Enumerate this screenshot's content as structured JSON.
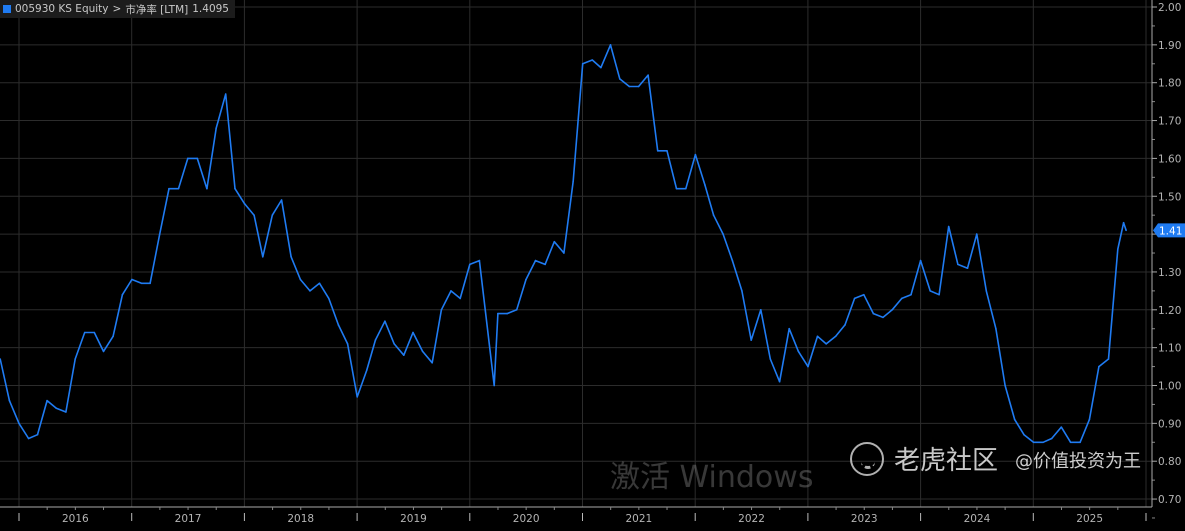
{
  "legend": {
    "ticker": "005930 KS Equity",
    "separator": ">",
    "metric": "市净率 [LTM]",
    "last_value": "1.4095",
    "color": "#1f7bf2"
  },
  "watermarks": {
    "logo_text": "老虎社区",
    "author": "@价值投资为王",
    "windows": "激活 Windows"
  },
  "chart_data": {
    "type": "line",
    "title": "",
    "xlabel": "",
    "ylabel": "",
    "ylim": [
      0.7,
      2.0
    ],
    "y_ticks": [
      "2.00",
      "1.90",
      "1.80",
      "1.70",
      "1.60",
      "1.50",
      "1.30",
      "1.20",
      "1.10",
      "1.00",
      "0.90",
      "0.80",
      "0.70"
    ],
    "x_ticks": [
      "2016",
      "2017",
      "2018",
      "2019",
      "2020",
      "2021",
      "2022",
      "2023",
      "2024",
      "2025"
    ],
    "grid": true,
    "background": "#000000",
    "last_value_badge": "1.41",
    "series": [
      {
        "name": "005930 KS Equity > 市净率 [LTM]",
        "color": "#1f7bf2",
        "dates": [
          "2015-11-01",
          "2015-12-01",
          "2016-01-01",
          "2016-02-01",
          "2016-03-01",
          "2016-04-01",
          "2016-05-01",
          "2016-06-01",
          "2016-07-01",
          "2016-08-01",
          "2016-09-01",
          "2016-10-01",
          "2016-11-01",
          "2016-12-01",
          "2017-01-01",
          "2017-02-01",
          "2017-03-01",
          "2017-04-01",
          "2017-05-01",
          "2017-06-01",
          "2017-07-01",
          "2017-08-01",
          "2017-09-01",
          "2017-10-01",
          "2017-11-01",
          "2017-12-01",
          "2018-01-01",
          "2018-02-01",
          "2018-03-01",
          "2018-04-01",
          "2018-05-01",
          "2018-06-01",
          "2018-07-01",
          "2018-08-01",
          "2018-09-01",
          "2018-10-01",
          "2018-11-01",
          "2018-12-01",
          "2019-01-01",
          "2019-02-01",
          "2019-03-01",
          "2019-04-01",
          "2019-05-01",
          "2019-06-01",
          "2019-07-01",
          "2019-08-01",
          "2019-09-01",
          "2019-10-01",
          "2019-11-01",
          "2019-12-01",
          "2020-01-01",
          "2020-02-01",
          "2020-03-20",
          "2020-04-01",
          "2020-05-01",
          "2020-06-01",
          "2020-07-01",
          "2020-08-01",
          "2020-09-01",
          "2020-10-01",
          "2020-11-01",
          "2020-12-01",
          "2021-01-01",
          "2021-02-01",
          "2021-03-01",
          "2021-04-01",
          "2021-05-01",
          "2021-06-01",
          "2021-07-01",
          "2021-08-01",
          "2021-09-01",
          "2021-10-01",
          "2021-11-01",
          "2021-12-01",
          "2022-01-01",
          "2022-02-01",
          "2022-03-01",
          "2022-04-01",
          "2022-05-01",
          "2022-06-01",
          "2022-07-01",
          "2022-08-01",
          "2022-09-01",
          "2022-10-01",
          "2022-11-01",
          "2022-12-01",
          "2023-01-01",
          "2023-02-01",
          "2023-03-01",
          "2023-04-01",
          "2023-05-01",
          "2023-06-01",
          "2023-07-01",
          "2023-08-01",
          "2023-09-01",
          "2023-10-01",
          "2023-11-01",
          "2023-12-01",
          "2024-01-01",
          "2024-02-01",
          "2024-03-01",
          "2024-04-01",
          "2024-05-01",
          "2024-06-01",
          "2024-07-01",
          "2024-08-01",
          "2024-09-01",
          "2024-10-01",
          "2024-11-01",
          "2024-12-01",
          "2025-01-01",
          "2025-02-01",
          "2025-03-01",
          "2025-04-01",
          "2025-05-01",
          "2025-06-01",
          "2025-07-01",
          "2025-08-01",
          "2025-09-01",
          "2025-10-01",
          "2025-10-20",
          "2025-10-28"
        ],
        "values": [
          1.07,
          0.96,
          0.9,
          0.86,
          0.87,
          0.96,
          0.94,
          0.93,
          1.07,
          1.14,
          1.14,
          1.09,
          1.13,
          1.24,
          1.28,
          1.27,
          1.27,
          1.4,
          1.52,
          1.52,
          1.6,
          1.6,
          1.52,
          1.68,
          1.77,
          1.52,
          1.48,
          1.45,
          1.34,
          1.45,
          1.49,
          1.34,
          1.28,
          1.25,
          1.27,
          1.23,
          1.16,
          1.11,
          0.97,
          1.04,
          1.12,
          1.17,
          1.11,
          1.08,
          1.14,
          1.09,
          1.06,
          1.2,
          1.25,
          1.23,
          1.32,
          1.33,
          1.0,
          1.19,
          1.19,
          1.2,
          1.28,
          1.33,
          1.32,
          1.38,
          1.35,
          1.54,
          1.85,
          1.86,
          1.84,
          1.9,
          1.81,
          1.79,
          1.79,
          1.82,
          1.62,
          1.62,
          1.52,
          1.52,
          1.61,
          1.53,
          1.45,
          1.4,
          1.33,
          1.25,
          1.12,
          1.2,
          1.07,
          1.01,
          1.15,
          1.09,
          1.05,
          1.13,
          1.11,
          1.13,
          1.16,
          1.23,
          1.24,
          1.19,
          1.18,
          1.2,
          1.23,
          1.24,
          1.33,
          1.25,
          1.24,
          1.42,
          1.32,
          1.31,
          1.4,
          1.25,
          1.15,
          1.0,
          0.91,
          0.87,
          0.85,
          0.85,
          0.86,
          0.89,
          0.85,
          0.85,
          0.91,
          1.05,
          1.07,
          1.36,
          1.43,
          1.41
        ]
      }
    ]
  }
}
